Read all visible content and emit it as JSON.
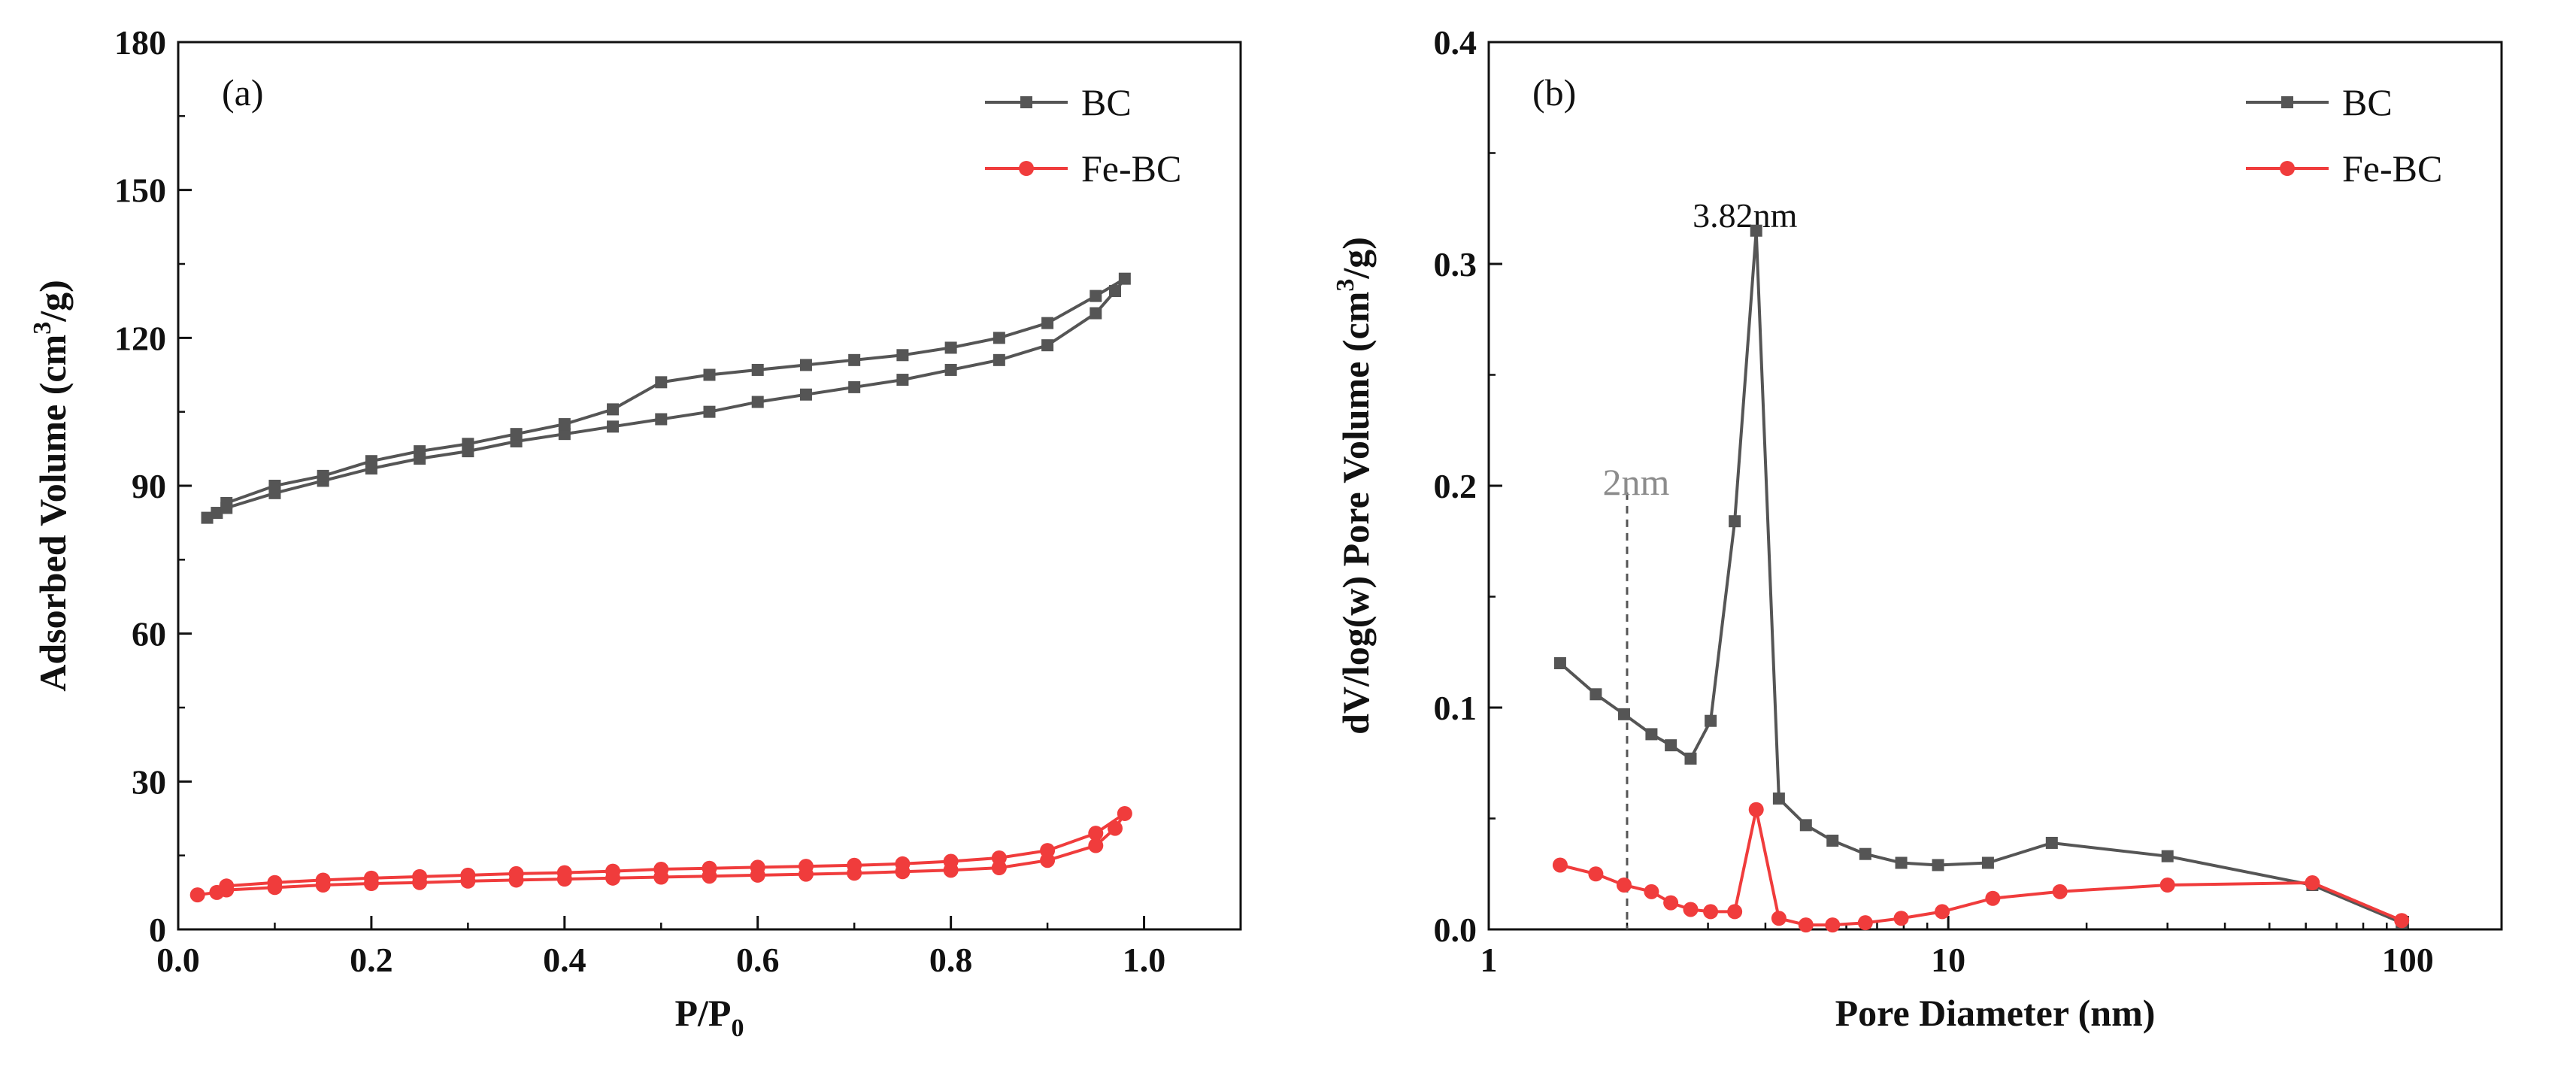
{
  "chart_data": [
    {
      "id": "a",
      "type": "line",
      "panel_label": "(a)",
      "xlabel_main": "P/P",
      "xlabel_sub": "0",
      "ylabel_pre": "Adsorbed Volume (cm",
      "ylabel_sup": "3",
      "ylabel_post": "/g)",
      "xlim": [
        0.0,
        1.1
      ],
      "ylim": [
        0,
        180
      ],
      "xticks": [
        0.0,
        0.2,
        0.4,
        0.6,
        0.8,
        1.0
      ],
      "xtick_labels": [
        "0.0",
        "0.2",
        "0.4",
        "0.6",
        "0.8",
        "1.0"
      ],
      "yticks": [
        0,
        30,
        60,
        90,
        120,
        150,
        180
      ],
      "ytick_labels": [
        "0",
        "30",
        "60",
        "90",
        "120",
        "150",
        "180"
      ],
      "legend_position": "top-right",
      "series": [
        {
          "name": "BC",
          "color": "#555555",
          "marker": "square",
          "x": [
            0.03,
            0.04,
            0.05,
            0.1,
            0.15,
            0.2,
            0.25,
            0.3,
            0.35,
            0.4,
            0.45,
            0.5,
            0.55,
            0.6,
            0.65,
            0.7,
            0.75,
            0.8,
            0.85,
            0.9,
            0.95,
            0.97,
            0.98,
            0.95,
            0.9,
            0.85,
            0.8,
            0.75,
            0.7,
            0.65,
            0.6,
            0.55,
            0.5,
            0.45,
            0.4,
            0.35,
            0.3,
            0.25,
            0.2,
            0.15,
            0.1,
            0.05
          ],
          "y": [
            83.5,
            84.5,
            85.5,
            88.5,
            91.0,
            93.5,
            95.5,
            97.0,
            99.0,
            100.5,
            102.0,
            103.5,
            105.0,
            107.0,
            108.5,
            110.0,
            111.5,
            113.5,
            115.5,
            118.5,
            125.0,
            129.5,
            132.0,
            128.5,
            123.0,
            120.0,
            118.0,
            116.5,
            115.5,
            114.5,
            113.5,
            112.5,
            111.0,
            105.5,
            102.5,
            100.5,
            98.5,
            97.0,
            95.0,
            92.0,
            90.0,
            86.5
          ]
        },
        {
          "name": "Fe-BC",
          "color": "#f03c3c",
          "marker": "circle",
          "x": [
            0.02,
            0.04,
            0.05,
            0.1,
            0.15,
            0.2,
            0.25,
            0.3,
            0.35,
            0.4,
            0.45,
            0.5,
            0.55,
            0.6,
            0.65,
            0.7,
            0.75,
            0.8,
            0.85,
            0.9,
            0.95,
            0.97,
            0.98,
            0.95,
            0.9,
            0.85,
            0.8,
            0.75,
            0.7,
            0.65,
            0.6,
            0.55,
            0.5,
            0.45,
            0.4,
            0.35,
            0.3,
            0.25,
            0.2,
            0.15,
            0.1,
            0.05
          ],
          "y": [
            7.0,
            7.5,
            8.0,
            8.5,
            9.0,
            9.3,
            9.5,
            9.8,
            10.0,
            10.2,
            10.4,
            10.6,
            10.8,
            11.0,
            11.2,
            11.4,
            11.7,
            12.0,
            12.5,
            14.0,
            17.0,
            20.5,
            23.5,
            19.5,
            16.0,
            14.5,
            13.8,
            13.3,
            13.0,
            12.8,
            12.6,
            12.4,
            12.2,
            11.8,
            11.5,
            11.3,
            11.0,
            10.7,
            10.4,
            10.0,
            9.5,
            8.8
          ]
        }
      ]
    },
    {
      "id": "b",
      "type": "line",
      "panel_label": "(b)",
      "xlabel": "Pore Diameter (nm)",
      "ylabel_pre": "dV/log(w) Pore Volume (cm",
      "ylabel_sup": "3",
      "ylabel_post": "/g)",
      "xscale": "log",
      "xlim": [
        1,
        160
      ],
      "ylim": [
        0,
        0.4
      ],
      "xticks": [
        1,
        10,
        100
      ],
      "xtick_labels": [
        "1",
        "10",
        "100"
      ],
      "yticks": [
        0.0,
        0.1,
        0.2,
        0.3,
        0.4
      ],
      "ytick_labels": [
        "0.0",
        "0.1",
        "0.2",
        "0.3",
        "0.4"
      ],
      "legend_position": "top-right",
      "annotations": [
        {
          "text": "3.82nm",
          "x": 3.82,
          "y": 0.32
        },
        {
          "text": "2nm",
          "x": 2.0,
          "y": 0.2,
          "style": "dashed-reference-line"
        }
      ],
      "series": [
        {
          "name": "BC",
          "color": "#555555",
          "marker": "square",
          "x": [
            1.43,
            1.71,
            1.97,
            2.26,
            2.49,
            2.75,
            3.04,
            3.43,
            3.82,
            4.28,
            4.9,
            5.6,
            6.6,
            7.9,
            9.5,
            12.2,
            16.8,
            30.0,
            62.0,
            97.0
          ],
          "y": [
            0.12,
            0.106,
            0.097,
            0.088,
            0.083,
            0.077,
            0.094,
            0.184,
            0.315,
            0.059,
            0.047,
            0.04,
            0.034,
            0.03,
            0.029,
            0.03,
            0.039,
            0.033,
            0.02,
            0.003
          ]
        },
        {
          "name": "Fe-BC",
          "color": "#f03c3c",
          "marker": "circle",
          "x": [
            1.43,
            1.71,
            1.97,
            2.26,
            2.49,
            2.75,
            3.04,
            3.43,
            3.82,
            4.28,
            4.9,
            5.6,
            6.6,
            7.9,
            9.7,
            12.5,
            17.5,
            30.0,
            62.0,
            97.0
          ],
          "y": [
            0.029,
            0.025,
            0.02,
            0.017,
            0.012,
            0.009,
            0.008,
            0.008,
            0.054,
            0.005,
            0.002,
            0.002,
            0.003,
            0.005,
            0.008,
            0.014,
            0.017,
            0.02,
            0.021,
            0.004
          ]
        }
      ]
    }
  ]
}
